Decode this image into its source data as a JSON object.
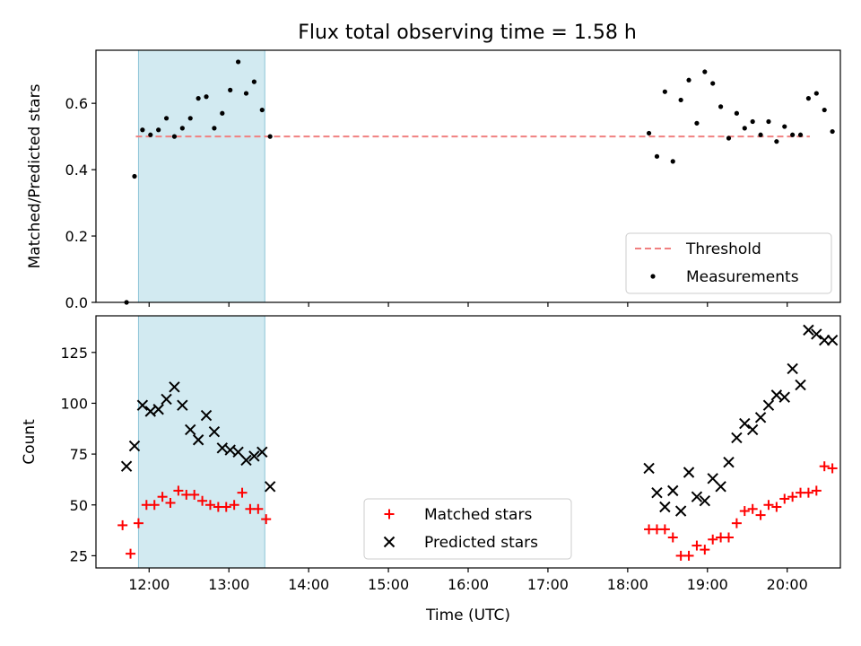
{
  "chart_data": {
    "type": "scatter",
    "title": "Flux total observing time = 1.58 h",
    "xlabel": "Time (UTC)",
    "x_ticks": [
      "12:00",
      "13:00",
      "14:00",
      "15:00",
      "16:00",
      "17:00",
      "18:00",
      "19:00",
      "20:00"
    ],
    "x_range": [
      "11:20",
      "20:40"
    ],
    "highlight_span": [
      "11:52",
      "13:27"
    ],
    "highlight_color": "#add8e6",
    "top_panel": {
      "ylabel": "Matched/Predicted stars",
      "ylim": [
        0,
        0.76
      ],
      "y_ticks": [
        "0.0",
        "0.2",
        "0.4",
        "0.6"
      ],
      "legend_position": "lower-right",
      "threshold": {
        "name": "Threshold",
        "value": 0.5,
        "x_start": "11:50",
        "x_end": "20:17",
        "color": "#f08080"
      },
      "measurements": {
        "name": "Measurements",
        "color": "#000000",
        "x": [
          "11:43",
          "11:49",
          "11:55",
          "12:01",
          "12:07",
          "12:13",
          "12:19",
          "12:25",
          "12:31",
          "12:37",
          "12:43",
          "12:49",
          "12:55",
          "13:01",
          "13:07",
          "13:13",
          "13:19",
          "13:25",
          "13:31",
          "18:16",
          "18:22",
          "18:28",
          "18:34",
          "18:40",
          "18:46",
          "18:52",
          "18:58",
          "19:04",
          "19:10",
          "19:16",
          "19:22",
          "19:28",
          "19:34",
          "19:40",
          "19:46",
          "19:52",
          "19:58",
          "20:04",
          "20:10",
          "20:16",
          "20:22",
          "20:28",
          "20:34"
        ],
        "y": [
          0.0,
          0.38,
          0.52,
          0.505,
          0.52,
          0.555,
          0.5,
          0.525,
          0.555,
          0.615,
          0.62,
          0.525,
          0.57,
          0.64,
          0.725,
          0.63,
          0.665,
          0.58,
          0.5,
          0.51,
          0.44,
          0.635,
          0.425,
          0.61,
          0.67,
          0.54,
          0.695,
          0.66,
          0.59,
          0.495,
          0.57,
          0.525,
          0.545,
          0.505,
          0.545,
          0.485,
          0.53,
          0.505,
          0.505,
          0.615,
          0.63,
          0.58,
          0.515
        ]
      }
    },
    "bottom_panel": {
      "ylabel": "Count",
      "ylim": [
        19,
        143
      ],
      "y_ticks": [
        "25",
        "50",
        "75",
        "100",
        "125"
      ],
      "legend_position": "lower-center",
      "series": [
        {
          "name": "Matched stars",
          "marker": "plus",
          "color": "#ff0000",
          "x": [
            "11:40",
            "11:46",
            "11:52",
            "11:58",
            "12:04",
            "12:10",
            "12:16",
            "12:22",
            "12:28",
            "12:34",
            "12:40",
            "12:46",
            "12:52",
            "12:58",
            "13:04",
            "13:10",
            "13:16",
            "13:22",
            "13:28",
            "18:16",
            "18:22",
            "18:28",
            "18:34",
            "18:40",
            "18:46",
            "18:52",
            "18:58",
            "19:04",
            "19:10",
            "19:16",
            "19:22",
            "19:28",
            "19:34",
            "19:40",
            "19:46",
            "19:52",
            "19:58",
            "20:04",
            "20:10",
            "20:16",
            "20:22",
            "20:28",
            "20:34"
          ],
          "y": [
            40,
            26,
            41,
            50,
            50,
            54,
            51,
            57,
            55,
            55,
            52,
            50,
            49,
            49,
            50,
            56,
            48,
            48,
            43,
            38,
            38,
            38,
            34,
            25,
            25,
            30,
            28,
            33,
            34,
            34,
            41,
            47,
            48,
            45,
            50,
            49,
            53,
            54,
            56,
            56,
            57,
            69,
            68
          ]
        },
        {
          "name": "Predicted stars",
          "marker": "x",
          "color": "#000000",
          "x": [
            "11:43",
            "11:49",
            "11:55",
            "12:01",
            "12:07",
            "12:13",
            "12:19",
            "12:25",
            "12:31",
            "12:37",
            "12:43",
            "12:49",
            "12:55",
            "13:01",
            "13:07",
            "13:13",
            "13:19",
            "13:25",
            "13:31",
            "18:16",
            "18:22",
            "18:28",
            "18:34",
            "18:40",
            "18:46",
            "18:52",
            "18:58",
            "19:04",
            "19:10",
            "19:16",
            "19:22",
            "19:28",
            "19:34",
            "19:40",
            "19:46",
            "19:52",
            "19:58",
            "20:04",
            "20:10",
            "20:16",
            "20:22",
            "20:28",
            "20:34"
          ],
          "y": [
            69,
            79,
            99,
            96,
            97,
            102,
            108,
            99,
            87,
            82,
            94,
            86,
            78,
            77,
            76,
            72,
            74,
            76,
            59,
            68,
            56,
            49,
            57,
            47,
            66,
            54,
            52,
            63,
            59,
            71,
            83,
            90,
            87,
            93,
            99,
            104,
            103,
            117,
            109,
            136,
            134,
            131,
            131
          ]
        }
      ]
    }
  }
}
